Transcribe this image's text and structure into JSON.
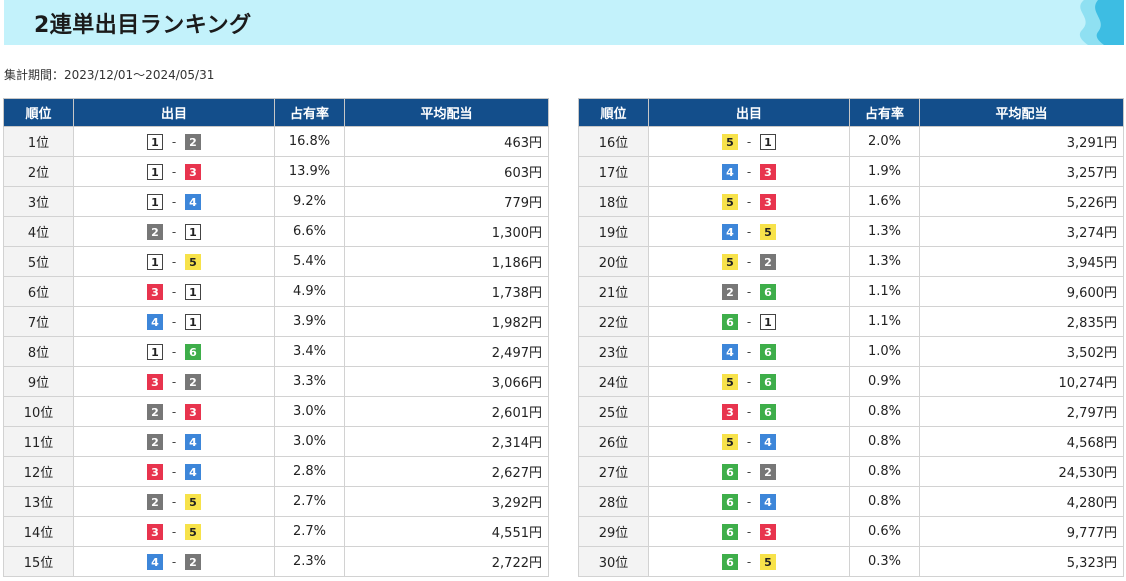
{
  "header": {
    "title": "2連単出目ランキング"
  },
  "period": {
    "label": "集計期間：",
    "value": "2023/12/01〜2024/05/31"
  },
  "columns": {
    "rank": "順位",
    "combo": "出目",
    "share": "占有率",
    "payout": "平均配当"
  },
  "boat_colors": {
    "1": "#ffffff",
    "2": "#777777",
    "3": "#e8344e",
    "4": "#3d86d9",
    "5": "#f7e24a",
    "6": "#3eae4a"
  },
  "rows": [
    {
      "rank": "1位",
      "first": "1",
      "second": "2",
      "share": "16.8%",
      "payout": "463円"
    },
    {
      "rank": "2位",
      "first": "1",
      "second": "3",
      "share": "13.9%",
      "payout": "603円"
    },
    {
      "rank": "3位",
      "first": "1",
      "second": "4",
      "share": "9.2%",
      "payout": "779円"
    },
    {
      "rank": "4位",
      "first": "2",
      "second": "1",
      "share": "6.6%",
      "payout": "1,300円"
    },
    {
      "rank": "5位",
      "first": "1",
      "second": "5",
      "share": "5.4%",
      "payout": "1,186円"
    },
    {
      "rank": "6位",
      "first": "3",
      "second": "1",
      "share": "4.9%",
      "payout": "1,738円"
    },
    {
      "rank": "7位",
      "first": "4",
      "second": "1",
      "share": "3.9%",
      "payout": "1,982円"
    },
    {
      "rank": "8位",
      "first": "1",
      "second": "6",
      "share": "3.4%",
      "payout": "2,497円"
    },
    {
      "rank": "9位",
      "first": "3",
      "second": "2",
      "share": "3.3%",
      "payout": "3,066円"
    },
    {
      "rank": "10位",
      "first": "2",
      "second": "3",
      "share": "3.0%",
      "payout": "2,601円"
    },
    {
      "rank": "11位",
      "first": "2",
      "second": "4",
      "share": "3.0%",
      "payout": "2,314円"
    },
    {
      "rank": "12位",
      "first": "3",
      "second": "4",
      "share": "2.8%",
      "payout": "2,627円"
    },
    {
      "rank": "13位",
      "first": "2",
      "second": "5",
      "share": "2.7%",
      "payout": "3,292円"
    },
    {
      "rank": "14位",
      "first": "3",
      "second": "5",
      "share": "2.7%",
      "payout": "4,551円"
    },
    {
      "rank": "15位",
      "first": "4",
      "second": "2",
      "share": "2.3%",
      "payout": "2,722円"
    },
    {
      "rank": "16位",
      "first": "5",
      "second": "1",
      "share": "2.0%",
      "payout": "3,291円"
    },
    {
      "rank": "17位",
      "first": "4",
      "second": "3",
      "share": "1.9%",
      "payout": "3,257円"
    },
    {
      "rank": "18位",
      "first": "5",
      "second": "3",
      "share": "1.6%",
      "payout": "5,226円"
    },
    {
      "rank": "19位",
      "first": "4",
      "second": "5",
      "share": "1.3%",
      "payout": "3,274円"
    },
    {
      "rank": "20位",
      "first": "5",
      "second": "2",
      "share": "1.3%",
      "payout": "3,945円"
    },
    {
      "rank": "21位",
      "first": "2",
      "second": "6",
      "share": "1.1%",
      "payout": "9,600円"
    },
    {
      "rank": "22位",
      "first": "6",
      "second": "1",
      "share": "1.1%",
      "payout": "2,835円"
    },
    {
      "rank": "23位",
      "first": "4",
      "second": "6",
      "share": "1.0%",
      "payout": "3,502円"
    },
    {
      "rank": "24位",
      "first": "5",
      "second": "6",
      "share": "0.9%",
      "payout": "10,274円"
    },
    {
      "rank": "25位",
      "first": "3",
      "second": "6",
      "share": "0.8%",
      "payout": "2,797円"
    },
    {
      "rank": "26位",
      "first": "5",
      "second": "4",
      "share": "0.8%",
      "payout": "4,568円"
    },
    {
      "rank": "27位",
      "first": "6",
      "second": "2",
      "share": "0.8%",
      "payout": "24,530円"
    },
    {
      "rank": "28位",
      "first": "6",
      "second": "4",
      "share": "0.8%",
      "payout": "4,280円"
    },
    {
      "rank": "29位",
      "first": "6",
      "second": "3",
      "share": "0.6%",
      "payout": "9,777円"
    },
    {
      "rank": "30位",
      "first": "6",
      "second": "5",
      "share": "0.3%",
      "payout": "5,323円"
    }
  ]
}
